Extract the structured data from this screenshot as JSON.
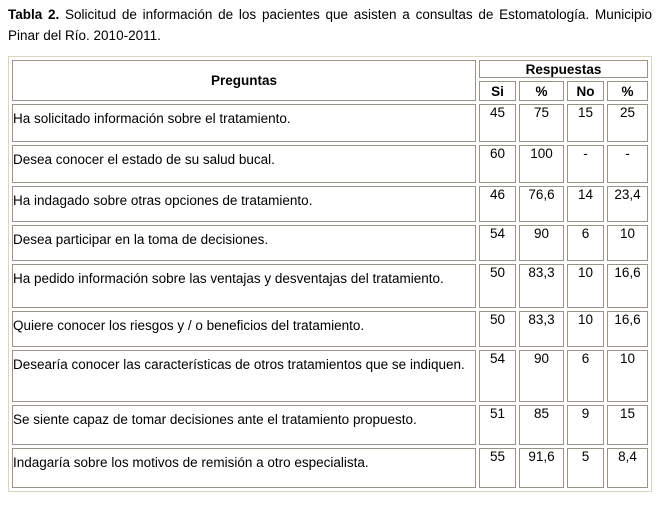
{
  "caption": {
    "label": "Tabla 2.",
    "text": "Solicitud de información de los pacientes que asisten a consultas de Estomatología. Municipio Pinar del Río. 2010-2011."
  },
  "table": {
    "preguntas_header": "Preguntas",
    "respuestas_header": "Respuestas",
    "sub_headers": {
      "si": "Si",
      "si_pct": "%",
      "no": "No",
      "no_pct": "%"
    },
    "rows": [
      {
        "pregunta": "Ha solicitado información sobre el tratamiento.",
        "si": "45",
        "si_pct": "75",
        "no": "15",
        "no_pct": "25"
      },
      {
        "pregunta": "Desea conocer el estado de su salud bucal.",
        "si": "60",
        "si_pct": "100",
        "no": "-",
        "no_pct": "-"
      },
      {
        "pregunta": "Ha indagado sobre otras opciones de tratamiento.",
        "si": "46",
        "si_pct": "76,6",
        "no": "14",
        "no_pct": "23,4"
      },
      {
        "pregunta": "Desea participar en la toma de decisiones.",
        "si": "54",
        "si_pct": "90",
        "no": "6",
        "no_pct": "10"
      },
      {
        "pregunta": "Ha pedido información sobre las ventajas y  desventajas del tratamiento.",
        "si": "50",
        "si_pct": "83,3",
        "no": "10",
        "no_pct": "16,6"
      },
      {
        "pregunta": "Quiere conocer los riesgos y / o beneficios del tratamiento.",
        "si": "50",
        "si_pct": "83,3",
        "no": "10",
        "no_pct": "16,6"
      },
      {
        "pregunta": "Desearía conocer las características de otros tratamientos que se indiquen.",
        "si": "54",
        "si_pct": "90",
        "no": "6",
        "no_pct": "10"
      },
      {
        "pregunta": "Se siente capaz de tomar decisiones ante el tratamiento propuesto.",
        "si": "51",
        "si_pct": "85",
        "no": "9",
        "no_pct": "15"
      },
      {
        "pregunta": "Indagaría sobre los motivos  de remisión  a otro especialista.",
        "si": "55",
        "si_pct": "91,6",
        "no": "5",
        "no_pct": "8,4"
      }
    ]
  },
  "colors": {
    "outer_border": "#d9d5c2",
    "cell_border": "#98948a",
    "text": "#000000",
    "background": "#ffffff"
  },
  "chart_data": {
    "type": "table",
    "title": "Tabla 2. Solicitud de información de los pacientes que asisten a consultas de Estomatología. Municipio Pinar del Río. 2010-2011.",
    "columns": [
      "Preguntas",
      "Si",
      "%",
      "No",
      "%"
    ],
    "rows": [
      [
        "Ha solicitado información sobre el tratamiento.",
        45,
        75,
        15,
        25
      ],
      [
        "Desea conocer el estado de su salud bucal.",
        60,
        100,
        null,
        null
      ],
      [
        "Ha indagado sobre otras opciones de tratamiento.",
        46,
        76.6,
        14,
        23.4
      ],
      [
        "Desea participar en la toma de decisiones.",
        54,
        90,
        6,
        10
      ],
      [
        "Ha pedido información sobre las ventajas y desventajas del tratamiento.",
        50,
        83.3,
        10,
        16.6
      ],
      [
        "Quiere conocer los riesgos y / o beneficios del tratamiento.",
        50,
        83.3,
        10,
        16.6
      ],
      [
        "Desearía conocer las características de otros tratamientos que se indiquen.",
        54,
        90,
        6,
        10
      ],
      [
        "Se siente capaz de tomar decisiones ante el tratamiento propuesto.",
        51,
        85,
        9,
        15
      ],
      [
        "Indagaría sobre los motivos de remisión a otro especialista.",
        55,
        91.6,
        5,
        8.4
      ]
    ]
  }
}
